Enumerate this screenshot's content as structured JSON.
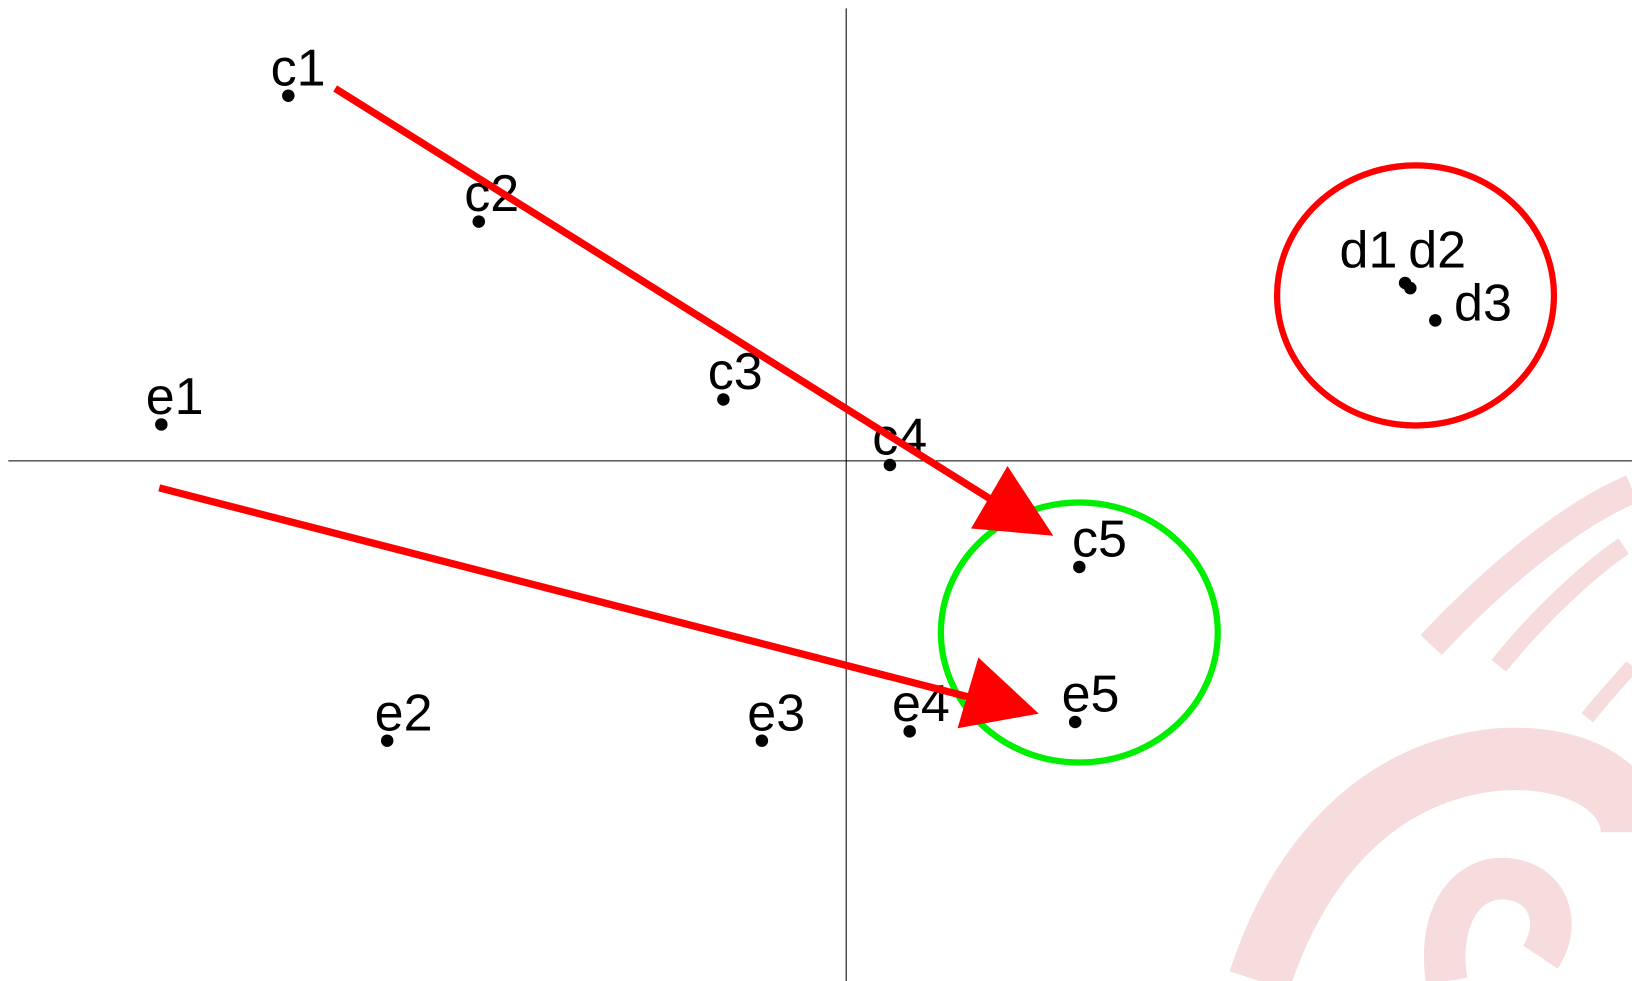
{
  "points": [
    {
      "label": "c1"
    },
    {
      "label": "c2"
    },
    {
      "label": "c3"
    },
    {
      "label": "c4"
    },
    {
      "label": "c5"
    },
    {
      "label": "e1"
    },
    {
      "label": "e2"
    },
    {
      "label": "e3"
    },
    {
      "label": "e4"
    },
    {
      "label": "e5"
    },
    {
      "label": "d1"
    },
    {
      "label": "d2"
    },
    {
      "label": "d3"
    }
  ]
}
